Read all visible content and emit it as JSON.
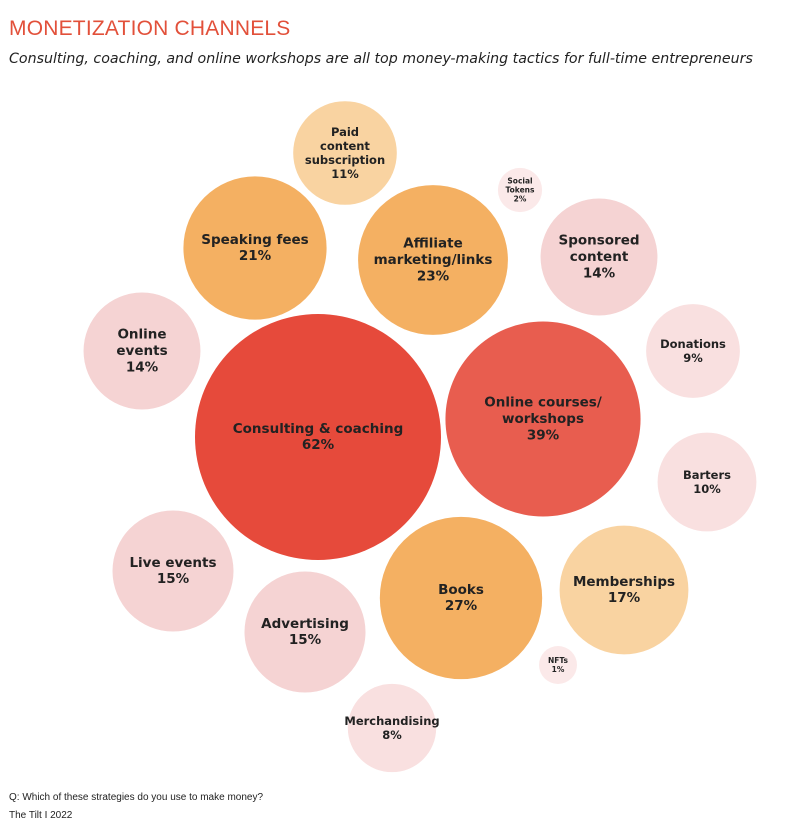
{
  "chart_data": {
    "type": "bubble",
    "title": "MONETIZATION CHANNELS",
    "subtitle": "Consulting, coaching, and online workshops are all top money-making tactics for full-time entrepreneurs",
    "unit": "%",
    "series": [
      {
        "name_lines": [
          "Consulting & coaching"
        ],
        "value": 62,
        "color": "#e64a3b"
      },
      {
        "name_lines": [
          "Online courses/",
          "workshops"
        ],
        "value": 39,
        "color": "#e85d4f"
      },
      {
        "name_lines": [
          "Books"
        ],
        "value": 27,
        "color": "#f4b062"
      },
      {
        "name_lines": [
          "Affiliate",
          "marketing/links"
        ],
        "value": 23,
        "color": "#f4b062"
      },
      {
        "name_lines": [
          "Speaking fees"
        ],
        "value": 21,
        "color": "#f4b062"
      },
      {
        "name_lines": [
          "Memberships"
        ],
        "value": 17,
        "color": "#f9d3a1"
      },
      {
        "name_lines": [
          "Live events"
        ],
        "value": 15,
        "color": "#f5d3d3"
      },
      {
        "name_lines": [
          "Advertising"
        ],
        "value": 15,
        "color": "#f5d3d3"
      },
      {
        "name_lines": [
          "Online",
          "events"
        ],
        "value": 14,
        "color": "#f5d3d3"
      },
      {
        "name_lines": [
          "Sponsored",
          "content"
        ],
        "value": 14,
        "color": "#f5d3d3"
      },
      {
        "name_lines": [
          "Paid",
          "content",
          "subscription"
        ],
        "value": 11,
        "color": "#f9d3a1"
      },
      {
        "name_lines": [
          "Barters"
        ],
        "value": 10,
        "color": "#f9e0e0"
      },
      {
        "name_lines": [
          "Donations"
        ],
        "value": 9,
        "color": "#f9e0e0"
      },
      {
        "name_lines": [
          "Merchandising"
        ],
        "value": 8,
        "color": "#f9e0e0"
      },
      {
        "name_lines": [
          "Social",
          "Tokens"
        ],
        "value": 2,
        "color": "#fbe9e9"
      },
      {
        "name_lines": [
          "NFTs"
        ],
        "value": 1,
        "color": "#fbe9e9"
      }
    ]
  },
  "footer": {
    "question": "Q: Which of these strategies do you use to make money?",
    "source": "The Tilt  I  2022"
  }
}
